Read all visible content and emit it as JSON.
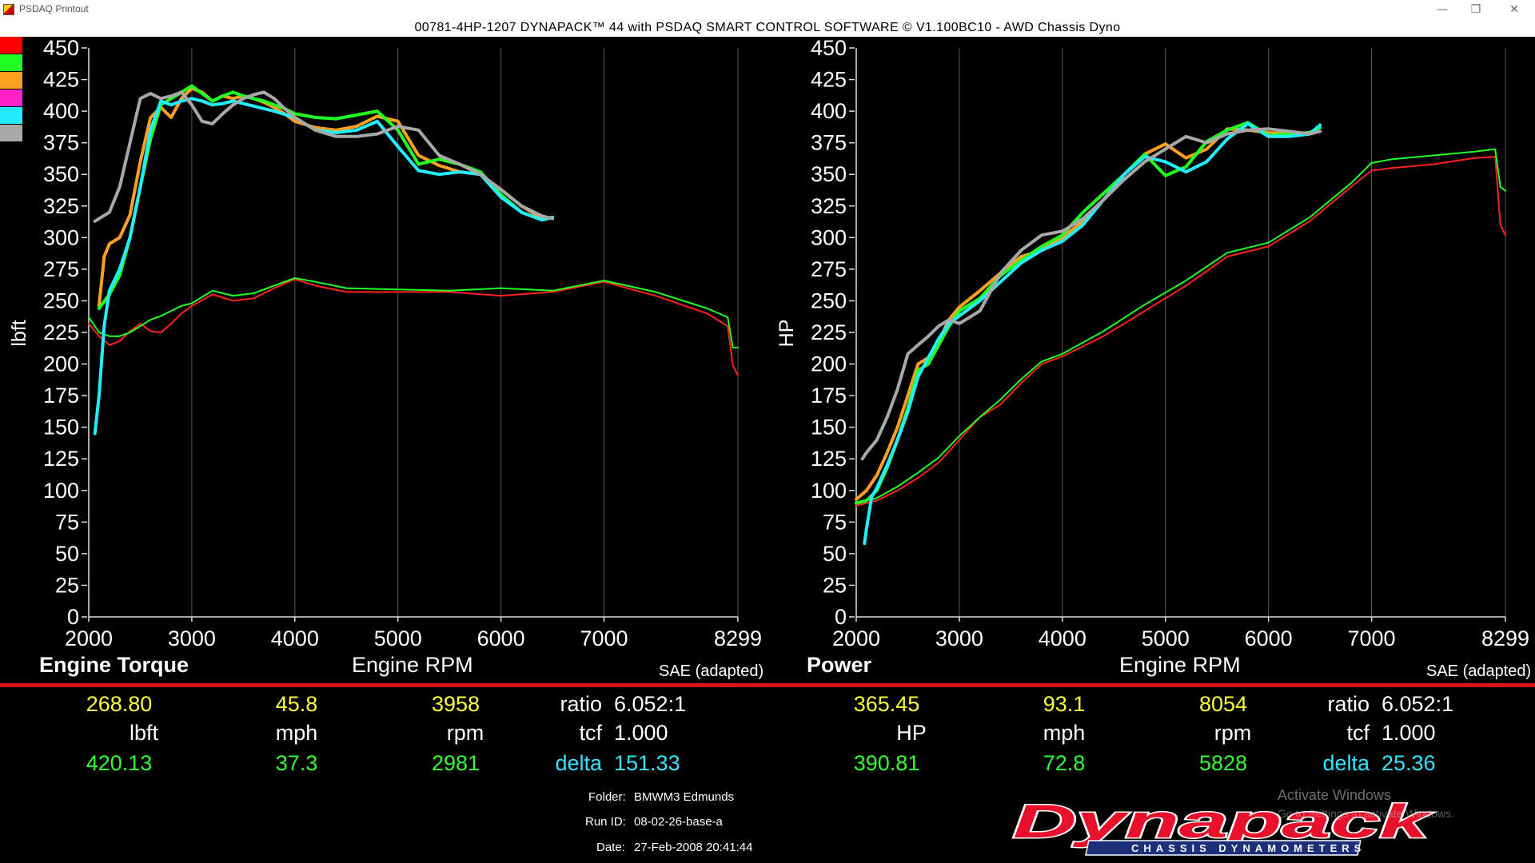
{
  "window": {
    "title": "PSDAQ Printout",
    "minimize_glyph": "—",
    "restore_glyph": "❐",
    "close_glyph": "✕"
  },
  "header": {
    "text": "00781-4HP-1207 DYNAPACK™ 44 with PSDAQ SMART CONTROL SOFTWARE © V1.100BC10 - AWD Chassis Dyno"
  },
  "legend_swatches": [
    "#ff0000",
    "#22ff22",
    "#ffa020",
    "#ff22cc",
    "#22eeff",
    "#a8a8a8"
  ],
  "chart_data": [
    {
      "type": "line",
      "title": "Engine Torque",
      "xlabel": "Engine RPM",
      "ylabel": "lbft",
      "note": "SAE (adapted)",
      "xlim": [
        2000,
        8299
      ],
      "ylim": [
        0,
        450
      ],
      "x_ticks": [
        "2000",
        "3000",
        "4000",
        "5000",
        "6000",
        "7000",
        "8299"
      ],
      "x_tick_values": [
        2000,
        3000,
        4000,
        5000,
        6000,
        7000,
        8299
      ],
      "y_ticks": [
        0,
        25,
        50,
        75,
        100,
        125,
        150,
        175,
        200,
        225,
        250,
        275,
        300,
        325,
        350,
        375,
        400,
        425,
        450
      ],
      "grid": true,
      "series": [
        {
          "color": "#ff2020",
          "x": [
            2000,
            2100,
            2200,
            2300,
            2400,
            2500,
            2600,
            2700,
            2800,
            2900,
            3000,
            3200,
            3400,
            3600,
            3800,
            4000,
            4200,
            4500,
            5000,
            5500,
            6000,
            6500,
            7000,
            7500,
            8000,
            8200,
            8250,
            8299
          ],
          "y": [
            232,
            222,
            215,
            218,
            226,
            232,
            226,
            225,
            232,
            240,
            246,
            255,
            250,
            252,
            260,
            267,
            262,
            257,
            257,
            257,
            254,
            257,
            265,
            254,
            240,
            230,
            199,
            191
          ]
        },
        {
          "color": "#22ff22",
          "x": [
            2000,
            2100,
            2200,
            2300,
            2400,
            2500,
            2600,
            2700,
            2800,
            2900,
            3000,
            3200,
            3400,
            3600,
            3800,
            4000,
            4200,
            4500,
            5000,
            5500,
            6000,
            6500,
            7000,
            7500,
            8000,
            8200,
            8250,
            8299
          ],
          "y": [
            237,
            225,
            222,
            222,
            225,
            230,
            235,
            238,
            242,
            246,
            248,
            258,
            254,
            256,
            262,
            268,
            265,
            260,
            259,
            258,
            260,
            258,
            266,
            257,
            244,
            237,
            213,
            213
          ]
        },
        {
          "color": "#ffa020",
          "x": [
            2100,
            2150,
            2200,
            2300,
            2400,
            2500,
            2600,
            2700,
            2800,
            2900,
            3000,
            3100,
            3200,
            3300,
            3400,
            3500,
            3600,
            3700,
            3800,
            3900,
            4000,
            4200,
            4400,
            4600,
            4800,
            5000,
            5200,
            5400,
            5600,
            5800,
            6000,
            6200,
            6400,
            6500
          ],
          "y": [
            246,
            285,
            295,
            300,
            318,
            360,
            395,
            403,
            395,
            410,
            418,
            415,
            408,
            412,
            410,
            412,
            410,
            407,
            403,
            398,
            392,
            387,
            385,
            388,
            396,
            392,
            365,
            357,
            352,
            350,
            338,
            325,
            315,
            316
          ]
        },
        {
          "color": "#22ff22",
          "x": [
            2100,
            2200,
            2300,
            2400,
            2500,
            2600,
            2700,
            2800,
            2900,
            3000,
            3100,
            3200,
            3300,
            3400,
            3500,
            3600,
            3700,
            3800,
            3900,
            4000,
            4200,
            4400,
            4600,
            4800,
            5000,
            5200,
            5400,
            5600,
            5800,
            6000,
            6200,
            6400,
            6500
          ],
          "y": [
            244,
            255,
            270,
            300,
            340,
            378,
            405,
            410,
            415,
            420,
            414,
            408,
            412,
            415,
            412,
            410,
            408,
            405,
            402,
            398,
            395,
            394,
            397,
            400,
            385,
            358,
            362,
            358,
            352,
            334,
            320,
            314,
            316
          ]
        },
        {
          "color": "#22eeff",
          "x": [
            2060,
            2100,
            2150,
            2200,
            2300,
            2400,
            2500,
            2600,
            2700,
            2800,
            2900,
            3000,
            3100,
            3200,
            3300,
            3400,
            3500,
            3600,
            3800,
            4000,
            4200,
            4400,
            4600,
            4800,
            5000,
            5200,
            5400,
            5600,
            5800,
            6000,
            6200,
            6400,
            6500
          ],
          "y": [
            145,
            175,
            230,
            258,
            275,
            300,
            340,
            385,
            408,
            405,
            408,
            410,
            408,
            405,
            406,
            408,
            406,
            404,
            400,
            395,
            385,
            383,
            385,
            392,
            372,
            353,
            350,
            352,
            350,
            332,
            320,
            314,
            316
          ]
        },
        {
          "color": "#a8a8a8",
          "x": [
            2060,
            2100,
            2200,
            2300,
            2400,
            2500,
            2600,
            2700,
            2800,
            2900,
            3000,
            3100,
            3200,
            3300,
            3400,
            3500,
            3600,
            3700,
            3800,
            3900,
            4000,
            4200,
            4400,
            4600,
            4800,
            5000,
            5200,
            5400,
            5600,
            5800,
            6000,
            6200,
            6400,
            6500
          ],
          "y": [
            313,
            315,
            320,
            340,
            375,
            410,
            414,
            410,
            412,
            415,
            405,
            392,
            390,
            398,
            405,
            410,
            413,
            415,
            410,
            402,
            395,
            385,
            380,
            380,
            382,
            388,
            385,
            365,
            358,
            350,
            338,
            325,
            317,
            315
          ]
        }
      ]
    },
    {
      "type": "line",
      "title": "Power",
      "xlabel": "Engine RPM",
      "ylabel": "HP",
      "note": "SAE (adapted)",
      "xlim": [
        2000,
        8299
      ],
      "ylim": [
        0,
        450
      ],
      "x_ticks": [
        "2000",
        "3000",
        "4000",
        "5000",
        "6000",
        "7000",
        "8299"
      ],
      "x_tick_values": [
        2000,
        3000,
        4000,
        5000,
        6000,
        7000,
        8299
      ],
      "y_ticks": [
        0,
        25,
        50,
        75,
        100,
        125,
        150,
        175,
        200,
        225,
        250,
        275,
        300,
        325,
        350,
        375,
        400,
        425,
        450
      ],
      "grid": true,
      "series": [
        {
          "color": "#ff2020",
          "x": [
            2000,
            2200,
            2400,
            2600,
            2800,
            3000,
            3200,
            3400,
            3600,
            3800,
            4000,
            4400,
            4800,
            5200,
            5600,
            6000,
            6400,
            6800,
            7000,
            7200,
            7600,
            8000,
            8200,
            8250,
            8299
          ],
          "y": [
            88,
            92,
            100,
            110,
            122,
            140,
            158,
            168,
            185,
            200,
            206,
            222,
            242,
            262,
            285,
            293,
            313,
            340,
            353,
            355,
            358,
            363,
            364,
            310,
            302
          ]
        },
        {
          "color": "#22ff22",
          "x": [
            2000,
            2200,
            2400,
            2600,
            2800,
            3000,
            3200,
            3400,
            3600,
            3800,
            4000,
            4400,
            4800,
            5200,
            5600,
            6000,
            6400,
            6800,
            7000,
            7200,
            7600,
            8000,
            8200,
            8250,
            8299
          ],
          "y": [
            90,
            94,
            103,
            114,
            126,
            143,
            158,
            172,
            188,
            202,
            208,
            226,
            247,
            266,
            288,
            296,
            316,
            343,
            359,
            362,
            365,
            368,
            370,
            340,
            337
          ]
        },
        {
          "color": "#ffa020",
          "x": [
            2000,
            2100,
            2200,
            2300,
            2400,
            2500,
            2600,
            2700,
            2800,
            2900,
            3000,
            3200,
            3400,
            3600,
            3800,
            4000,
            4200,
            4400,
            4600,
            4800,
            5000,
            5200,
            5400,
            5600,
            5800,
            6000,
            6200,
            6400,
            6500
          ],
          "y": [
            93,
            100,
            112,
            130,
            150,
            175,
            200,
            205,
            218,
            235,
            245,
            258,
            272,
            285,
            290,
            300,
            313,
            330,
            350,
            366,
            374,
            363,
            370,
            386,
            385,
            383,
            382,
            383,
            387
          ]
        },
        {
          "color": "#22ff22",
          "x": [
            2000,
            2100,
            2200,
            2300,
            2400,
            2500,
            2600,
            2700,
            2800,
            2900,
            3000,
            3200,
            3400,
            3600,
            3800,
            4000,
            4200,
            4400,
            4600,
            4800,
            5000,
            5200,
            5400,
            5600,
            5800,
            6000,
            6200,
            6400,
            6500
          ],
          "y": [
            90,
            92,
            100,
            118,
            140,
            165,
            195,
            200,
            215,
            230,
            242,
            252,
            270,
            282,
            293,
            302,
            320,
            335,
            350,
            366,
            349,
            356,
            376,
            385,
            391,
            381,
            382,
            383,
            387
          ]
        },
        {
          "color": "#22eeff",
          "x": [
            2080,
            2100,
            2150,
            2200,
            2300,
            2400,
            2500,
            2600,
            2700,
            2800,
            2900,
            3000,
            3200,
            3400,
            3600,
            3800,
            4000,
            4200,
            4400,
            4600,
            4800,
            5000,
            5200,
            5400,
            5600,
            5800,
            6000,
            6200,
            6400,
            6500
          ],
          "y": [
            58,
            70,
            95,
            102,
            120,
            140,
            162,
            190,
            205,
            220,
            232,
            238,
            250,
            265,
            280,
            290,
            297,
            310,
            330,
            350,
            364,
            360,
            352,
            360,
            378,
            390,
            380,
            380,
            382,
            389
          ]
        },
        {
          "color": "#a8a8a8",
          "x": [
            2060,
            2100,
            2200,
            2300,
            2400,
            2500,
            2600,
            2700,
            2800,
            2900,
            3000,
            3200,
            3400,
            3600,
            3800,
            4000,
            4200,
            4400,
            4600,
            4800,
            5000,
            5200,
            5400,
            5600,
            5800,
            6000,
            6200,
            6400,
            6500
          ],
          "y": [
            125,
            130,
            140,
            158,
            180,
            208,
            215,
            222,
            230,
            235,
            232,
            242,
            272,
            290,
            302,
            305,
            315,
            330,
            346,
            360,
            370,
            380,
            375,
            382,
            385,
            386,
            384,
            382,
            384
          ]
        }
      ]
    }
  ],
  "labels": {
    "left_title": "Engine Torque",
    "right_title": "Power",
    "left_xtitle": "Engine RPM",
    "right_xtitle": "Engine RPM",
    "left_sae": "SAE (adapted)",
    "right_sae": "SAE (adapted)"
  },
  "readouts": {
    "left": {
      "row1": {
        "value": "268.80",
        "speed": "45.8",
        "rpm": "3958",
        "key": "ratio",
        "val": "6.052:1"
      },
      "row2": {
        "unit": "lbft",
        "speed_unit": "mph",
        "rpm_unit": "rpm",
        "key": "tcf",
        "val": "1.000"
      },
      "row3": {
        "value": "420.13",
        "speed": "37.3",
        "rpm": "2981",
        "key": "delta",
        "val": "151.33"
      }
    },
    "right": {
      "row1": {
        "value": "365.45",
        "speed": "93.1",
        "rpm": "8054",
        "key": "ratio",
        "val": "6.052:1"
      },
      "row2": {
        "unit": "HP",
        "speed_unit": "mph",
        "rpm_unit": "rpm",
        "key": "tcf",
        "val": "1.000"
      },
      "row3": {
        "value": "390.81",
        "speed": "72.8",
        "rpm": "5828",
        "key": "delta",
        "val": "25.36"
      }
    }
  },
  "info": {
    "folder_label": "Folder:",
    "folder_value": "BMWM3 Edmunds",
    "runid_label": "Run ID:",
    "runid_value": "08-02-26-base-a",
    "date_label": "Date:",
    "date_value": "27-Feb-2008 20:41:44"
  },
  "logo": {
    "brand": "Dynapack",
    "tagline": "CHASSIS DYNAMOMETERS"
  },
  "watermark": {
    "line1": "Activate Windows",
    "line2": "Go to Settings to activate Windows."
  }
}
